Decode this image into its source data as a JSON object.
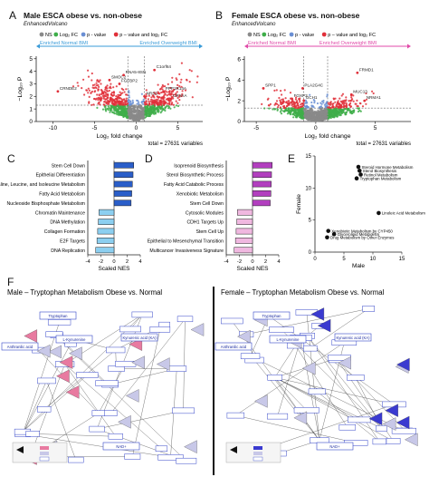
{
  "panels": {
    "A": {
      "letter": "A",
      "title": "Male ESCA obese vs. non-obese",
      "subtitle": "EnhancedVolcano"
    },
    "B": {
      "letter": "B",
      "title": "Female ESCA obese vs. non-obese",
      "subtitle": "EnhancedVolcano"
    },
    "C": {
      "letter": "C"
    },
    "D": {
      "letter": "D"
    },
    "E": {
      "letter": "E"
    },
    "F": {
      "letter": "F"
    }
  },
  "volcano_legend": [
    "NS",
    "Log₂ FC",
    "p - value",
    "p – value and log₂ FC"
  ],
  "volcano_colors": {
    "ns": "#8a8a8a",
    "fc": "#3fae4a",
    "p": "#6a8fd4",
    "both": "#e0303a"
  },
  "banner": {
    "normal": "Enriched Normal BMI",
    "overweight": "Enriched Overweight BMI",
    "male_color": "#3a9bd8",
    "female_color": "#e04aa8"
  },
  "pathway": {
    "male_title": "Male – Tryptophan Metabolism Obese vs. Normal",
    "female_title": "Female – Tryptophan Metabolism Obese vs. Normal",
    "nodes": {
      "lkyn": "L-Kynurenine",
      "ka": "Kynurenic acid (KA)",
      "trp": "Tryptophan",
      "aa": "Anthranilic acid",
      "nad": "NAD+"
    }
  },
  "chart_data": [
    {
      "id": "A",
      "type": "scatter",
      "title": "Male ESCA obese vs. non-obese",
      "xlabel": "Log₂ fold change",
      "ylabel": "−Log₁₀ P",
      "xlim": [
        -12,
        8
      ],
      "ylim": [
        0,
        5.2
      ],
      "x_ticks": [
        -10,
        -5,
        0,
        5
      ],
      "y_ticks": [
        0,
        1,
        2,
        3,
        4,
        5
      ],
      "caption": "total = 27631 variables",
      "labels": [
        {
          "text": "CRNDE2",
          "x": -9.4,
          "y": 2.4
        },
        {
          "text": "SMOC2",
          "x": -3.2,
          "y": 3.3
        },
        {
          "text": "FGFBP2",
          "x": -2.0,
          "y": 3.0
        },
        {
          "text": "RNA5-8SN",
          "x": -1.5,
          "y": 3.7
        },
        {
          "text": "C1orf64",
          "x": 2.2,
          "y": 4.1
        },
        {
          "text": "PPP1R14A",
          "x": 3.3,
          "y": 2.4
        },
        {
          "text": "NRS3",
          "x": 1.0,
          "y": 2.0
        },
        {
          "text": "CRYAA",
          "x": 4.2,
          "y": 1.8
        }
      ]
    },
    {
      "id": "B",
      "type": "scatter",
      "title": "Female ESCA obese vs. non-obese",
      "xlabel": "Log₂ fold change",
      "ylabel": "−Log₁₀ P",
      "xlim": [
        -6,
        8
      ],
      "ylim": [
        0,
        6.3
      ],
      "x_ticks": [
        -5,
        0,
        5
      ],
      "y_ticks": [
        0,
        2,
        4,
        6
      ],
      "caption": "total = 27631 variables",
      "labels": [
        {
          "text": "FRMD1",
          "x": 3.5,
          "y": 4.7
        },
        {
          "text": "SPP1",
          "x": -4.4,
          "y": 3.2
        },
        {
          "text": "PLA2G4C",
          "x": -1.1,
          "y": 3.2
        },
        {
          "text": "MUC13",
          "x": 3.0,
          "y": 2.6
        },
        {
          "text": "FOXP3",
          "x": -2.0,
          "y": 2.2
        },
        {
          "text": "GCH1",
          "x": -1.0,
          "y": 2.0
        },
        {
          "text": "NRMA1",
          "x": 4.1,
          "y": 2.0
        }
      ]
    },
    {
      "id": "C",
      "type": "bar",
      "orientation": "horizontal",
      "xlabel": "Scaled NES",
      "xlim": [
        -4,
        4
      ],
      "x_ticks": [
        -4,
        -2,
        0,
        2,
        4
      ],
      "categories": [
        "Stem Cell Down",
        "Epithelial Differentiation",
        "Valine, Leucine, and Isoleucine Metabolism",
        "Fatty Acid Metabolism",
        "Nucleoside Bisphosphate Metabolism",
        "Chromatin Maintenance",
        "DNA Methylation",
        "Collagen Formation",
        "E2F Targets",
        "DNA Replication"
      ],
      "values": [
        3.0,
        2.9,
        2.8,
        2.7,
        2.6,
        -2.3,
        -2.4,
        -2.5,
        -2.6,
        -2.8
      ],
      "colors": [
        "#2a5ec9",
        "#2a5ec9",
        "#2a5ec9",
        "#2a5ec9",
        "#2a5ec9",
        "#8ccff0",
        "#8ccff0",
        "#8ccff0",
        "#8ccff0",
        "#8ccff0"
      ]
    },
    {
      "id": "D",
      "type": "bar",
      "orientation": "horizontal",
      "xlabel": "Scaled NES",
      "xlim": [
        -4,
        4
      ],
      "x_ticks": [
        -4,
        -2,
        0,
        2,
        4
      ],
      "categories": [
        "Isoprenoid Biosynthesis",
        "Sterol Biosynthetic Process",
        "Fatty Acid Catabolic Process",
        "Xenobiotic Metabolism",
        "Stem Cell Down",
        "Cytosolic Modules",
        "CDH1 Targets Up",
        "Stem Cell Up",
        "Epithelial to Mesenchymal Transition",
        "Multicancer Invasiveness Signature"
      ],
      "values": [
        3.0,
        2.9,
        2.85,
        2.8,
        2.7,
        -2.3,
        -2.4,
        -2.5,
        -2.6,
        -2.8
      ],
      "colors": [
        "#b23fbf",
        "#b23fbf",
        "#b23fbf",
        "#b23fbf",
        "#b23fbf",
        "#f0b8e0",
        "#f0b8e0",
        "#f0b8e0",
        "#f0b8e0",
        "#f0b8e0"
      ]
    },
    {
      "id": "E",
      "type": "scatter",
      "xlabel": "Male",
      "ylabel": "Female",
      "xlim": [
        0,
        15
      ],
      "ylim": [
        0,
        15
      ],
      "x_ticks": [
        0,
        5,
        10,
        15
      ],
      "y_ticks": [
        0,
        5,
        10,
        15
      ],
      "points": [
        {
          "label": "Steroid Hormone Metabolism",
          "x": 7.5,
          "y": 13.3
        },
        {
          "label": "Sterol Biosynthesis",
          "x": 7.7,
          "y": 12.7
        },
        {
          "label": "Retinol Metabolism",
          "x": 7.9,
          "y": 12.1
        },
        {
          "label": "Tryptophan Metabolism",
          "x": 7.2,
          "y": 11.5
        },
        {
          "label": "Linoleic Acid Metabolism",
          "x": 11.0,
          "y": 6.1
        },
        {
          "label": "Xenobiotic Metabolism by CYP450",
          "x": 2.3,
          "y": 3.3
        },
        {
          "label": "Glycerolipid Metabolism",
          "x": 3.3,
          "y": 2.8
        },
        {
          "label": "Drug Metabolism by Other Enzymes",
          "x": 2.1,
          "y": 2.3
        }
      ]
    }
  ]
}
